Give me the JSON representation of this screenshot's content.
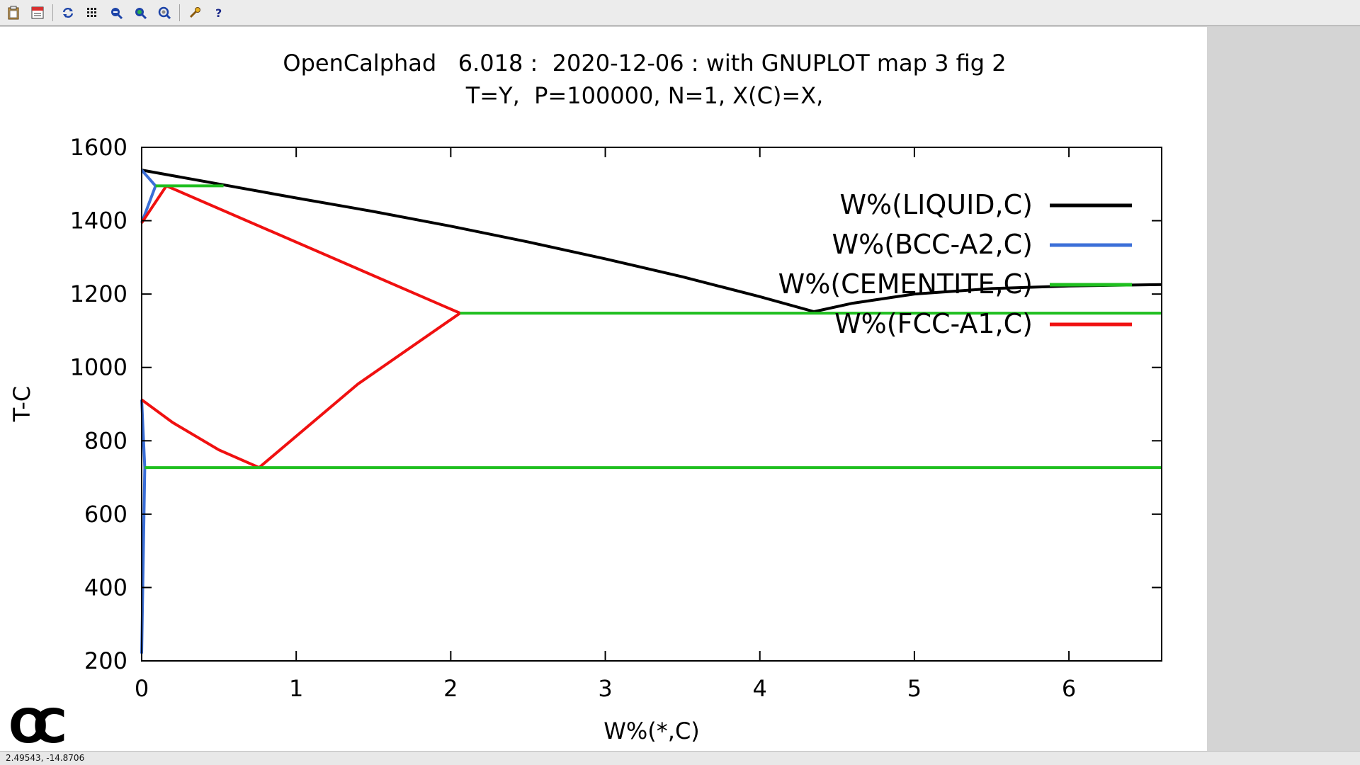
{
  "toolbar": {
    "buttons": [
      {
        "icon": "clipboard-icon"
      },
      {
        "icon": "print-icon"
      },
      {
        "icon": "replot-icon"
      },
      {
        "icon": "grid-icon"
      },
      {
        "icon": "zoom-previous-icon"
      },
      {
        "icon": "zoom-next-icon"
      },
      {
        "icon": "autoscale-icon"
      },
      {
        "icon": "options-icon"
      },
      {
        "icon": "help-icon"
      }
    ]
  },
  "statusbar": {
    "coords": "2.49543, -14.8706"
  },
  "logo": {
    "text": "OC"
  },
  "colors": {
    "liquid": "#000000",
    "bcc": "#3b6fd8",
    "cementite": "#1fbf1f",
    "fcc": "#f01010"
  },
  "chart_data": {
    "type": "line",
    "title": "OpenCalphad   6.018 :  2020-12-06 : with GNUPLOT map 3 fig 2",
    "subtitle": "T=Y,  P=100000, N=1, X(C)=X,",
    "xlabel": "W%(*,C)",
    "ylabel": "T-C",
    "xlim": [
      0,
      6.6
    ],
    "ylim": [
      200,
      1600
    ],
    "xticks": [
      0,
      1,
      2,
      3,
      4,
      5,
      6
    ],
    "yticks": [
      200,
      400,
      600,
      800,
      1000,
      1200,
      1400,
      1600
    ],
    "grid": false,
    "legend_position": "top-right",
    "series": [
      {
        "name": "W%(LIQUID,C)",
        "color": "#000000",
        "segments": [
          [
            [
              0,
              1538
            ],
            [
              0.5,
              1500
            ],
            [
              1,
              1462
            ],
            [
              1.5,
              1425
            ],
            [
              2,
              1385
            ],
            [
              2.5,
              1342
            ],
            [
              3,
              1296
            ],
            [
              3.5,
              1247
            ],
            [
              4,
              1193
            ],
            [
              4.35,
              1152
            ]
          ],
          [
            [
              4.35,
              1152
            ],
            [
              4.6,
              1175
            ],
            [
              5,
              1200
            ],
            [
              5.5,
              1215
            ],
            [
              6,
              1222
            ],
            [
              6.6,
              1226
            ]
          ]
        ]
      },
      {
        "name": "W%(BCC-A2,C)",
        "color": "#3b6fd8",
        "segments": [
          [
            [
              0,
              1538
            ],
            [
              0.09,
              1495
            ],
            [
              0,
              1394
            ]
          ],
          [
            [
              0,
              912
            ],
            [
              0.02,
              727
            ],
            [
              0,
              220
            ]
          ]
        ]
      },
      {
        "name": "W%(CEMENTITE,C)",
        "color": "#1fbf1f",
        "segments": [
          [
            [
              0.09,
              1495
            ],
            [
              0.53,
              1495
            ]
          ],
          [
            [
              2.06,
              1148
            ],
            [
              6.6,
              1148
            ]
          ],
          [
            [
              0.02,
              727
            ],
            [
              6.6,
              727
            ]
          ]
        ]
      },
      {
        "name": "W%(FCC-A1,C)",
        "color": "#f01010",
        "segments": [
          [
            [
              0,
              1394
            ],
            [
              0.16,
              1495
            ]
          ],
          [
            [
              0.16,
              1495
            ],
            [
              2.06,
              1148
            ]
          ],
          [
            [
              0,
              912
            ],
            [
              0.2,
              850
            ],
            [
              0.5,
              775
            ],
            [
              0.76,
              727
            ]
          ],
          [
            [
              0.76,
              727
            ],
            [
              1.4,
              955
            ],
            [
              2.06,
              1148
            ]
          ]
        ]
      }
    ]
  }
}
